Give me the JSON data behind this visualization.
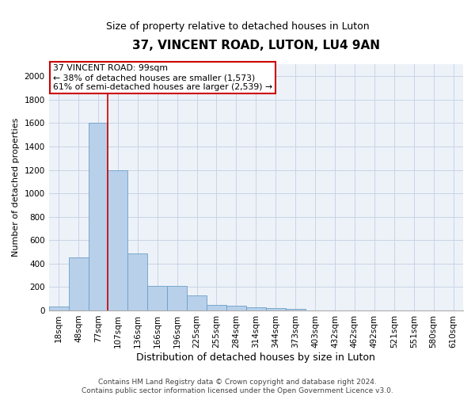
{
  "title": "37, VINCENT ROAD, LUTON, LU4 9AN",
  "subtitle": "Size of property relative to detached houses in Luton",
  "xlabel": "Distribution of detached houses by size in Luton",
  "ylabel": "Number of detached properties",
  "footer_line1": "Contains HM Land Registry data © Crown copyright and database right 2024.",
  "footer_line2": "Contains public sector information licensed under the Open Government Licence v3.0.",
  "categories": [
    "18sqm",
    "48sqm",
    "77sqm",
    "107sqm",
    "136sqm",
    "166sqm",
    "196sqm",
    "225sqm",
    "255sqm",
    "284sqm",
    "314sqm",
    "344sqm",
    "373sqm",
    "403sqm",
    "432sqm",
    "462sqm",
    "492sqm",
    "521sqm",
    "551sqm",
    "580sqm",
    "610sqm"
  ],
  "values": [
    35,
    455,
    1600,
    1195,
    490,
    210,
    210,
    128,
    50,
    40,
    25,
    20,
    15,
    0,
    0,
    0,
    0,
    0,
    0,
    0,
    0
  ],
  "bar_color": "#b8d0ea",
  "bar_edge_color": "#6a9fc8",
  "vline_x": 2.5,
  "vline_color": "#cc0000",
  "annotation_line1": "37 VINCENT ROAD: 99sqm",
  "annotation_line2": "← 38% of detached houses are smaller (1,573)",
  "annotation_line3": "61% of semi-detached houses are larger (2,539) →",
  "annotation_box_color": "#ffffff",
  "annotation_box_edge_color": "#cc0000",
  "ylim": [
    0,
    2100
  ],
  "yticks": [
    0,
    200,
    400,
    600,
    800,
    1000,
    1200,
    1400,
    1600,
    1800,
    2000
  ],
  "grid_color": "#c8d4e4",
  "background_color": "#edf2f9",
  "title_fontsize": 11,
  "subtitle_fontsize": 9,
  "ylabel_fontsize": 8,
  "xlabel_fontsize": 9,
  "tick_fontsize": 7.5,
  "footer_fontsize": 6.5
}
